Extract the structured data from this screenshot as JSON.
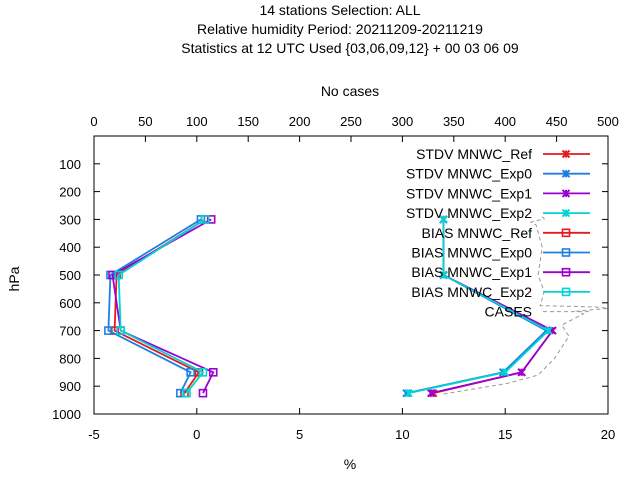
{
  "chart_data": {
    "type": "line",
    "title_lines": [
      "14 stations Selection: ALL",
      "Relative humidity  Period: 20211209-20211219",
      "Statistics at 12 UTC  Used {03,06,09,12} + 00 03 06 09"
    ],
    "x2label": "No cases",
    "xlabel": "%",
    "ylabel": "hPa",
    "xlim": [
      -5,
      20
    ],
    "x2lim": [
      0,
      500
    ],
    "ylim": [
      1000,
      0
    ],
    "x_ticks": [
      -5,
      0,
      5,
      10,
      15,
      20
    ],
    "x2_ticks": [
      0,
      50,
      100,
      150,
      200,
      250,
      300,
      350,
      400,
      450,
      500
    ],
    "y_ticks": [
      100,
      200,
      300,
      400,
      500,
      600,
      700,
      800,
      900,
      1000
    ],
    "legend_position": "top-right",
    "grid": false,
    "series": [
      {
        "name": "STDV MNWC_Ref",
        "kind": "stdv",
        "color": "#e41a1c",
        "marker": "x",
        "points": [
          [
            11.5,
            925
          ],
          [
            15.8,
            850
          ],
          [
            17.3,
            700
          ],
          [
            12.0,
            500
          ],
          [
            12.0,
            300
          ]
        ]
      },
      {
        "name": "STDV MNWC_Exp0",
        "kind": "stdv",
        "color": "#1e7fe0",
        "marker": "x",
        "points": [
          [
            10.2,
            925
          ],
          [
            14.9,
            850
          ],
          [
            17.0,
            700
          ],
          [
            12.0,
            500
          ],
          [
            12.0,
            300
          ]
        ]
      },
      {
        "name": "STDV MNWC_Exp1",
        "kind": "stdv",
        "color": "#9b00d3",
        "marker": "x",
        "points": [
          [
            11.4,
            925
          ],
          [
            15.8,
            850
          ],
          [
            17.3,
            700
          ],
          [
            12.0,
            500
          ],
          [
            12.0,
            300
          ]
        ]
      },
      {
        "name": "STDV MNWC_Exp2",
        "kind": "stdv",
        "color": "#00d4d4",
        "marker": "x",
        "points": [
          [
            10.3,
            925
          ],
          [
            15.0,
            850
          ],
          [
            17.1,
            700
          ],
          [
            12.0,
            500
          ],
          [
            12.0,
            300
          ]
        ]
      },
      {
        "name": "BIAS MNWC_Ref",
        "kind": "bias",
        "color": "#e41a1c",
        "marker": "square",
        "points": [
          [
            -0.6,
            925
          ],
          [
            0.1,
            850
          ],
          [
            -4.0,
            700
          ],
          [
            -3.9,
            500
          ],
          [
            0.4,
            300
          ]
        ]
      },
      {
        "name": "BIAS MNWC_Exp0",
        "kind": "bias",
        "color": "#1e7fe0",
        "marker": "square",
        "points": [
          [
            -0.8,
            925
          ],
          [
            -0.3,
            850
          ],
          [
            -4.3,
            700
          ],
          [
            -4.2,
            500
          ],
          [
            0.2,
            300
          ]
        ]
      },
      {
        "name": "BIAS MNWC_Exp1",
        "kind": "bias",
        "color": "#9b00d3",
        "marker": "square",
        "points": [
          [
            0.3,
            925
          ],
          [
            0.8,
            850
          ],
          [
            -3.7,
            700
          ],
          [
            -4.1,
            500
          ],
          [
            0.7,
            300
          ]
        ]
      },
      {
        "name": "BIAS MNWC_Exp2",
        "kind": "bias",
        "color": "#00d4d4",
        "marker": "square",
        "points": [
          [
            -0.5,
            925
          ],
          [
            0.3,
            850
          ],
          [
            -3.7,
            700
          ],
          [
            -3.8,
            500
          ],
          [
            0.4,
            300
          ]
        ]
      },
      {
        "name": "CASES",
        "kind": "cases",
        "color": "#999999",
        "marker": "none",
        "axis": "x2",
        "points": [
          [
            340,
            928
          ],
          [
            402,
            890
          ],
          [
            432,
            860
          ],
          [
            448,
            800
          ],
          [
            462,
            720
          ],
          [
            455,
            680
          ],
          [
            476,
            640
          ],
          [
            470,
            630
          ],
          [
            500,
            620
          ],
          [
            488,
            615
          ],
          [
            434,
            610
          ],
          [
            438,
            560
          ],
          [
            432,
            500
          ],
          [
            436,
            400
          ],
          [
            430,
            320
          ],
          [
            425,
            310
          ],
          [
            438,
            298
          ],
          [
            436,
            290
          ]
        ]
      }
    ]
  }
}
